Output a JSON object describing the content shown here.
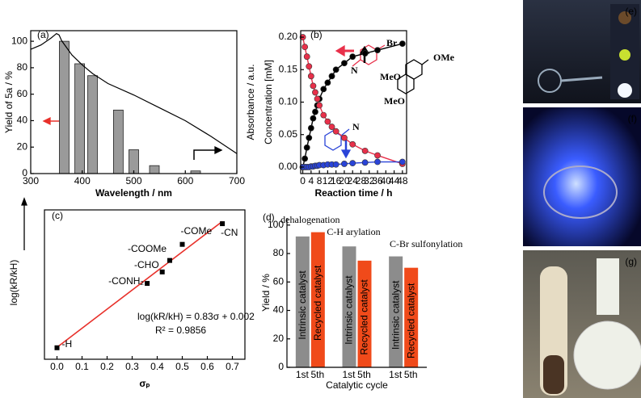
{
  "chart_data": [
    {
      "type": "bar",
      "label": "(a)",
      "xlabel": "Wavelength / nm",
      "ylabel": "Yield of 5a / %",
      "y2label": "Absorbance / a.u.",
      "bars": {
        "x": [
          365,
          395,
          420,
          470,
          500,
          540,
          620
        ],
        "values": [
          100,
          83,
          74,
          48,
          18,
          6,
          2
        ],
        "color": "#9a9a9a"
      },
      "absorbance": {
        "axis": "y2",
        "color": "#000000",
        "x": [
          300,
          320,
          340,
          350,
          355,
          360,
          370,
          380,
          400,
          420,
          450,
          500,
          550,
          600,
          650,
          700
        ],
        "values": [
          0.87,
          0.9,
          0.95,
          0.98,
          0.97,
          0.93,
          0.88,
          0.83,
          0.76,
          0.7,
          0.63,
          0.55,
          0.46,
          0.37,
          0.26,
          0.14
        ]
      },
      "xlim": [
        300,
        700
      ],
      "xticks": [
        300,
        400,
        500,
        600,
        700
      ],
      "ylim": [
        0,
        108
      ],
      "yticks": [
        0,
        20,
        40,
        60,
        80,
        100
      ],
      "y2lim": [
        0,
        1
      ]
    },
    {
      "type": "line",
      "label": "(b)",
      "xlabel": "Reaction time / h",
      "ylabel": "Concentration [mM]",
      "x": [
        0,
        1,
        2,
        3,
        4,
        5,
        6,
        7,
        8,
        10,
        12,
        14,
        16,
        20,
        24,
        30,
        36,
        48
      ],
      "series": [
        {
          "color": "#000000",
          "values": [
            0,
            0.013,
            0.03,
            0.045,
            0.06,
            0.075,
            0.085,
            0.095,
            0.105,
            0.12,
            0.13,
            0.14,
            0.15,
            0.16,
            0.17,
            0.175,
            0.18,
            0.19
          ]
        },
        {
          "color": "#e8304a",
          "values": [
            0.2,
            0.185,
            0.17,
            0.155,
            0.14,
            0.125,
            0.115,
            0.105,
            0.095,
            0.08,
            0.07,
            0.062,
            0.055,
            0.045,
            0.035,
            0.025,
            0.018,
            0.005
          ]
        },
        {
          "color": "#2a44d8",
          "values": [
            0,
            0,
            0,
            0,
            0.001,
            0.001,
            0.002,
            0.002,
            0.003,
            0.003,
            0.004,
            0.004,
            0.004,
            0.005,
            0.006,
            0.007,
            0.008,
            0.008
          ]
        }
      ],
      "annotations": [
        "Br",
        "N",
        "N",
        "OMe",
        "MeO",
        "MeO"
      ],
      "xlim": [
        -1,
        50
      ],
      "xticks": [
        0,
        4,
        8,
        12,
        16,
        20,
        24,
        28,
        32,
        36,
        40,
        44,
        48
      ],
      "ylim": [
        -0.01,
        0.21
      ],
      "yticks": [
        {
          "value": 0,
          "label": "0.00"
        },
        {
          "value": 0.05,
          "label": "0.05"
        },
        {
          "value": 0.1,
          "label": "0.10"
        },
        {
          "value": 0.15,
          "label": "0.15"
        },
        {
          "value": 0.2,
          "label": "0.20"
        }
      ]
    },
    {
      "type": "scatter",
      "label": "(c)",
      "xlabel": "σₚ",
      "ylabel": "log(kR/kH)",
      "x": [
        0,
        0.36,
        0.42,
        0.45,
        0.5,
        0.66
      ],
      "values": [
        0,
        0.28,
        0.33,
        0.38,
        0.45,
        0.54
      ],
      "point_labels": [
        "-H",
        "-CONH₂",
        "-CHO",
        "-COOMe",
        "-COMe",
        "-CN"
      ],
      "fit_line": {
        "color": "#e8302a",
        "x": [
          0,
          0.66
        ],
        "values": [
          0.002,
          0.55
        ]
      },
      "equation": "log(kR/kH) = 0.83σ + 0.002",
      "r2": "R² = 0.9856",
      "xlim": [
        -0.05,
        0.75
      ],
      "xticks": [
        {
          "value": 0,
          "label": "0.0"
        },
        0.1,
        0.2,
        0.3,
        0.4,
        0.5,
        0.6,
        0.7
      ],
      "ylim": [
        -0.05,
        0.6
      ]
    },
    {
      "type": "bar",
      "label": "(d)",
      "xlabel": "Catalytic cycle",
      "ylabel": "Yield / %",
      "categories": [
        "dehalogenation",
        "C-H arylation",
        "C-Br sulfonylation"
      ],
      "tick_labels": [
        "1st",
        "5th"
      ],
      "series": [
        {
          "name": "Intrinsic catalyst",
          "color": "#8c8c8c",
          "values": [
            92,
            85,
            78
          ]
        },
        {
          "name": "Recycled catalyst",
          "color": "#f04a1a",
          "values": [
            95,
            75,
            70
          ]
        }
      ],
      "ylim": [
        0,
        105
      ],
      "yticks": [
        0,
        20,
        40,
        60,
        80,
        100
      ]
    }
  ],
  "photos": [
    {
      "label": "(e)"
    },
    {
      "label": "(f)"
    },
    {
      "label": "(g)"
    }
  ]
}
